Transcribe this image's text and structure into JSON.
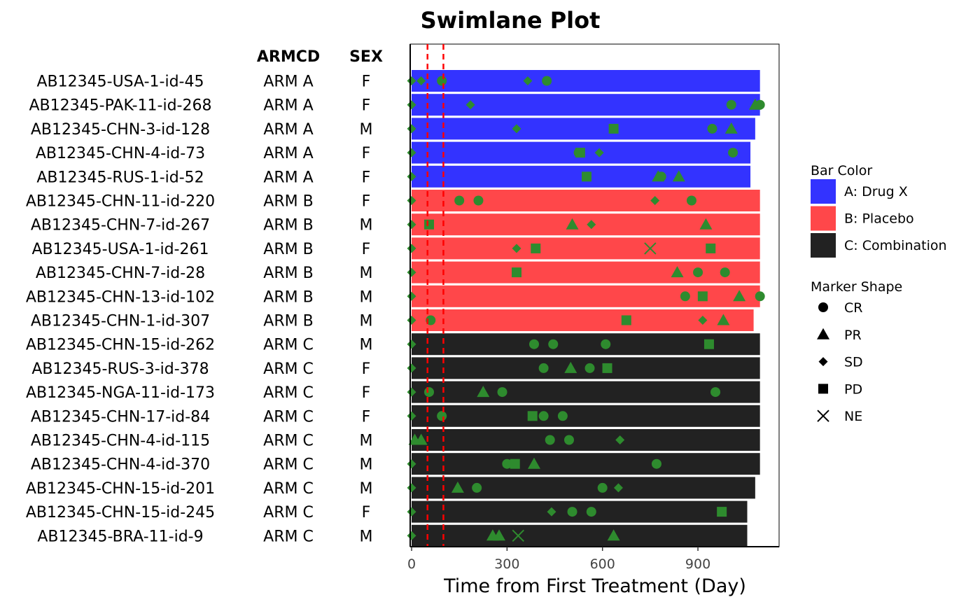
{
  "chart_data": {
    "type": "bar",
    "title": "Swimlane Plot",
    "xlabel": "Time from First Treatment (Day)",
    "xlim": [
      0,
      1150
    ],
    "x_ticks": [
      0,
      300,
      600,
      900
    ],
    "reference_lines": [
      50,
      100
    ],
    "table_headers": [
      "ARMCD",
      "SEX"
    ],
    "legend_bar_title": "Bar Color",
    "legend_marker_title": "Marker Shape",
    "legend_placement": "right",
    "arms": [
      {
        "code": "A",
        "name": "A: Drug X",
        "color": "#3333FF"
      },
      {
        "code": "B",
        "name": "B: Placebo",
        "color": "#FF474A"
      },
      {
        "code": "C",
        "name": "C: Combination",
        "color": "#222222"
      }
    ],
    "marker_color": "#2E8B2E",
    "marker_shapes": [
      "CR",
      "PR",
      "SD",
      "PD",
      "NE"
    ],
    "subjects": [
      {
        "id": "AB12345-USA-1-id-45",
        "armcd": "ARM A",
        "sex": "F",
        "arm": "A",
        "duration": 1095,
        "markers": [
          {
            "x": 0,
            "s": "SD"
          },
          {
            "x": 30,
            "s": "SD"
          },
          {
            "x": 95,
            "s": "CR"
          },
          {
            "x": 365,
            "s": "SD"
          },
          {
            "x": 425,
            "s": "CR"
          }
        ]
      },
      {
        "id": "AB12345-PAK-11-id-268",
        "armcd": "ARM A",
        "sex": "F",
        "arm": "A",
        "duration": 1095,
        "markers": [
          {
            "x": 0,
            "s": "SD"
          },
          {
            "x": 185,
            "s": "SD"
          },
          {
            "x": 1005,
            "s": "CR"
          },
          {
            "x": 1080,
            "s": "PR"
          },
          {
            "x": 1095,
            "s": "CR"
          }
        ]
      },
      {
        "id": "AB12345-CHN-3-id-128",
        "armcd": "ARM A",
        "sex": "M",
        "arm": "A",
        "duration": 1080,
        "markers": [
          {
            "x": 0,
            "s": "SD"
          },
          {
            "x": 330,
            "s": "SD"
          },
          {
            "x": 635,
            "s": "PD"
          },
          {
            "x": 945,
            "s": "CR"
          },
          {
            "x": 1005,
            "s": "PR"
          }
        ]
      },
      {
        "id": "AB12345-CHN-4-id-73",
        "armcd": "ARM A",
        "sex": "F",
        "arm": "A",
        "duration": 1065,
        "markers": [
          {
            "x": 0,
            "s": "SD"
          },
          {
            "x": 525,
            "s": "CR"
          },
          {
            "x": 530,
            "s": "PD"
          },
          {
            "x": 590,
            "s": "SD"
          },
          {
            "x": 1010,
            "s": "CR"
          }
        ]
      },
      {
        "id": "AB12345-RUS-1-id-52",
        "armcd": "ARM A",
        "sex": "F",
        "arm": "A",
        "duration": 1065,
        "markers": [
          {
            "x": 0,
            "s": "SD"
          },
          {
            "x": 550,
            "s": "PD"
          },
          {
            "x": 775,
            "s": "PR"
          },
          {
            "x": 785,
            "s": "CR"
          },
          {
            "x": 840,
            "s": "PR"
          }
        ]
      },
      {
        "id": "AB12345-CHN-11-id-220",
        "armcd": "ARM B",
        "sex": "F",
        "arm": "B",
        "duration": 1095,
        "markers": [
          {
            "x": 0,
            "s": "SD"
          },
          {
            "x": 150,
            "s": "CR"
          },
          {
            "x": 210,
            "s": "CR"
          },
          {
            "x": 765,
            "s": "SD"
          },
          {
            "x": 880,
            "s": "CR"
          }
        ]
      },
      {
        "id": "AB12345-CHN-7-id-267",
        "armcd": "ARM B",
        "sex": "M",
        "arm": "B",
        "duration": 1095,
        "markers": [
          {
            "x": 0,
            "s": "SD"
          },
          {
            "x": 55,
            "s": "PD"
          },
          {
            "x": 505,
            "s": "PR"
          },
          {
            "x": 565,
            "s": "SD"
          },
          {
            "x": 925,
            "s": "PR"
          }
        ]
      },
      {
        "id": "AB12345-USA-1-id-261",
        "armcd": "ARM B",
        "sex": "F",
        "arm": "B",
        "duration": 1095,
        "markers": [
          {
            "x": 0,
            "s": "SD"
          },
          {
            "x": 330,
            "s": "SD"
          },
          {
            "x": 390,
            "s": "PD"
          },
          {
            "x": 750,
            "s": "NE"
          },
          {
            "x": 940,
            "s": "PD"
          }
        ]
      },
      {
        "id": "AB12345-CHN-7-id-28",
        "armcd": "ARM B",
        "sex": "M",
        "arm": "B",
        "duration": 1095,
        "markers": [
          {
            "x": 0,
            "s": "SD"
          },
          {
            "x": 330,
            "s": "PD"
          },
          {
            "x": 835,
            "s": "PR"
          },
          {
            "x": 900,
            "s": "CR"
          },
          {
            "x": 985,
            "s": "CR"
          }
        ]
      },
      {
        "id": "AB12345-CHN-13-id-102",
        "armcd": "ARM B",
        "sex": "M",
        "arm": "B",
        "duration": 1095,
        "markers": [
          {
            "x": 0,
            "s": "SD"
          },
          {
            "x": 860,
            "s": "CR"
          },
          {
            "x": 915,
            "s": "PD"
          },
          {
            "x": 1030,
            "s": "PR"
          },
          {
            "x": 1095,
            "s": "CR"
          }
        ]
      },
      {
        "id": "AB12345-CHN-1-id-307",
        "armcd": "ARM B",
        "sex": "M",
        "arm": "B",
        "duration": 1075,
        "markers": [
          {
            "x": 0,
            "s": "SD"
          },
          {
            "x": 60,
            "s": "CR"
          },
          {
            "x": 675,
            "s": "PD"
          },
          {
            "x": 915,
            "s": "SD"
          },
          {
            "x": 980,
            "s": "PR"
          }
        ]
      },
      {
        "id": "AB12345-CHN-15-id-262",
        "armcd": "ARM C",
        "sex": "M",
        "arm": "C",
        "duration": 1095,
        "markers": [
          {
            "x": 0,
            "s": "SD"
          },
          {
            "x": 385,
            "s": "CR"
          },
          {
            "x": 445,
            "s": "CR"
          },
          {
            "x": 610,
            "s": "CR"
          },
          {
            "x": 935,
            "s": "PD"
          }
        ]
      },
      {
        "id": "AB12345-RUS-3-id-378",
        "armcd": "ARM C",
        "sex": "F",
        "arm": "C",
        "duration": 1095,
        "markers": [
          {
            "x": 0,
            "s": "SD"
          },
          {
            "x": 415,
            "s": "CR"
          },
          {
            "x": 500,
            "s": "PR"
          },
          {
            "x": 560,
            "s": "CR"
          },
          {
            "x": 615,
            "s": "PD"
          }
        ]
      },
      {
        "id": "AB12345-NGA-11-id-173",
        "armcd": "ARM C",
        "sex": "F",
        "arm": "C",
        "duration": 1095,
        "markers": [
          {
            "x": 0,
            "s": "SD"
          },
          {
            "x": 55,
            "s": "CR"
          },
          {
            "x": 225,
            "s": "PR"
          },
          {
            "x": 285,
            "s": "CR"
          },
          {
            "x": 955,
            "s": "CR"
          }
        ]
      },
      {
        "id": "AB12345-CHN-17-id-84",
        "armcd": "ARM C",
        "sex": "F",
        "arm": "C",
        "duration": 1095,
        "markers": [
          {
            "x": 0,
            "s": "SD"
          },
          {
            "x": 95,
            "s": "CR"
          },
          {
            "x": 380,
            "s": "PD"
          },
          {
            "x": 415,
            "s": "CR"
          },
          {
            "x": 475,
            "s": "CR"
          }
        ]
      },
      {
        "id": "AB12345-CHN-4-id-115",
        "armcd": "ARM C",
        "sex": "M",
        "arm": "C",
        "duration": 1095,
        "markers": [
          {
            "x": 10,
            "s": "PR"
          },
          {
            "x": 30,
            "s": "PR"
          },
          {
            "x": 435,
            "s": "CR"
          },
          {
            "x": 495,
            "s": "CR"
          },
          {
            "x": 655,
            "s": "SD"
          }
        ]
      },
      {
        "id": "AB12345-CHN-4-id-370",
        "armcd": "ARM C",
        "sex": "M",
        "arm": "C",
        "duration": 1095,
        "markers": [
          {
            "x": 0,
            "s": "SD"
          },
          {
            "x": 300,
            "s": "CR"
          },
          {
            "x": 325,
            "s": "PD"
          },
          {
            "x": 385,
            "s": "PR"
          },
          {
            "x": 770,
            "s": "CR"
          }
        ]
      },
      {
        "id": "AB12345-CHN-15-id-201",
        "armcd": "ARM C",
        "sex": "M",
        "arm": "C",
        "duration": 1080,
        "markers": [
          {
            "x": 0,
            "s": "SD"
          },
          {
            "x": 145,
            "s": "PR"
          },
          {
            "x": 205,
            "s": "CR"
          },
          {
            "x": 600,
            "s": "CR"
          },
          {
            "x": 650,
            "s": "SD"
          }
        ]
      },
      {
        "id": "AB12345-CHN-15-id-245",
        "armcd": "ARM C",
        "sex": "F",
        "arm": "C",
        "duration": 1055,
        "markers": [
          {
            "x": 0,
            "s": "SD"
          },
          {
            "x": 440,
            "s": "SD"
          },
          {
            "x": 505,
            "s": "CR"
          },
          {
            "x": 565,
            "s": "CR"
          },
          {
            "x": 975,
            "s": "PD"
          }
        ]
      },
      {
        "id": "AB12345-BRA-11-id-9",
        "armcd": "ARM C",
        "sex": "M",
        "arm": "C",
        "duration": 1055,
        "markers": [
          {
            "x": 0,
            "s": "SD"
          },
          {
            "x": 255,
            "s": "PR"
          },
          {
            "x": 275,
            "s": "PR"
          },
          {
            "x": 335,
            "s": "NE"
          },
          {
            "x": 635,
            "s": "PR"
          }
        ]
      }
    ]
  }
}
